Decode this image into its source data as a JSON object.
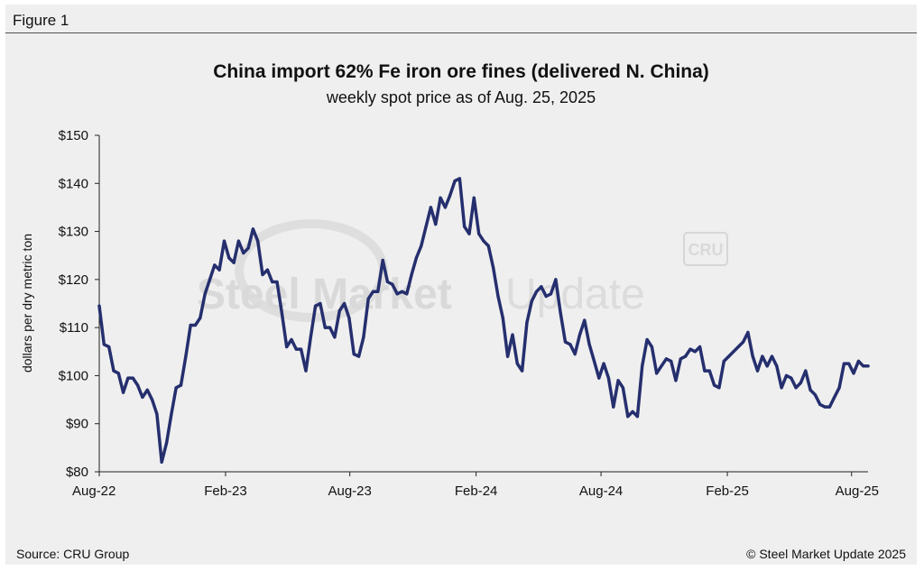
{
  "figure_label": "Figure 1",
  "source": "Source: CRU Group",
  "copyright": "© Steel Market Update 2025",
  "watermark": {
    "brand": "Steel Market",
    "brand2": "Update",
    "badge": "CRU"
  },
  "colors": {
    "line": "#252f6e",
    "background": "#efefef",
    "watermark": "#d9d9d9"
  },
  "chart_data": {
    "type": "line",
    "title": "China import 62% Fe iron ore fines (delivered N. China)",
    "subtitle": "weekly spot price as of Aug. 25, 2025",
    "ylabel": "dollars per dry metric ton",
    "xlabel": "",
    "ylim": [
      80,
      150
    ],
    "yticks": [
      80,
      90,
      100,
      110,
      120,
      130,
      140,
      150
    ],
    "ytick_labels": [
      "$80",
      "$90",
      "$100",
      "$110",
      "$120",
      "$130",
      "$140",
      "$150"
    ],
    "xlim": [
      "2022-08-01",
      "2025-08-25"
    ],
    "xticks": [
      "2022-08-01",
      "2023-02-01",
      "2023-08-01",
      "2024-02-01",
      "2024-08-01",
      "2025-02-01",
      "2025-08-01"
    ],
    "xtick_labels": [
      "Aug-22",
      "Feb-23",
      "Aug-23",
      "Feb-24",
      "Aug-24",
      "Feb-25",
      "Aug-25"
    ],
    "grid": false,
    "legend": "none",
    "series": [
      {
        "x": [
          "2022-08-01",
          "2022-08-08",
          "2022-08-15",
          "2022-08-22",
          "2022-08-29",
          "2022-09-05",
          "2022-09-12",
          "2022-09-19",
          "2022-09-26",
          "2022-10-03",
          "2022-10-10",
          "2022-10-17",
          "2022-10-24",
          "2022-10-31",
          "2022-11-07",
          "2022-11-14",
          "2022-11-21",
          "2022-11-28",
          "2022-12-05",
          "2022-12-12",
          "2022-12-19",
          "2022-12-26",
          "2023-01-02",
          "2023-01-09",
          "2023-01-16",
          "2023-01-23",
          "2023-01-30",
          "2023-02-06",
          "2023-02-13",
          "2023-02-20",
          "2023-02-27",
          "2023-03-06",
          "2023-03-13",
          "2023-03-20",
          "2023-03-27",
          "2023-04-03",
          "2023-04-10",
          "2023-04-17",
          "2023-04-24",
          "2023-05-01",
          "2023-05-08",
          "2023-05-15",
          "2023-05-22",
          "2023-05-29",
          "2023-06-05",
          "2023-06-12",
          "2023-06-19",
          "2023-06-26",
          "2023-07-03",
          "2023-07-10",
          "2023-07-17",
          "2023-07-24",
          "2023-07-31",
          "2023-08-07",
          "2023-08-14",
          "2023-08-21",
          "2023-08-28",
          "2023-09-04",
          "2023-09-11",
          "2023-09-18",
          "2023-09-25",
          "2023-10-02",
          "2023-10-09",
          "2023-10-16",
          "2023-10-23",
          "2023-10-30",
          "2023-11-06",
          "2023-11-13",
          "2023-11-20",
          "2023-11-27",
          "2023-12-04",
          "2023-12-11",
          "2023-12-18",
          "2023-12-25",
          "2024-01-01",
          "2024-01-08",
          "2024-01-15",
          "2024-01-22",
          "2024-01-29",
          "2024-02-05",
          "2024-02-12",
          "2024-02-19",
          "2024-02-26",
          "2024-03-04",
          "2024-03-11",
          "2024-03-18",
          "2024-03-25",
          "2024-04-01",
          "2024-04-08",
          "2024-04-15",
          "2024-04-22",
          "2024-04-29",
          "2024-05-06",
          "2024-05-13",
          "2024-05-20",
          "2024-05-27",
          "2024-06-03",
          "2024-06-10",
          "2024-06-17",
          "2024-06-24",
          "2024-07-01",
          "2024-07-08",
          "2024-07-15",
          "2024-07-22",
          "2024-07-29",
          "2024-08-05",
          "2024-08-12",
          "2024-08-19",
          "2024-08-26",
          "2024-09-02",
          "2024-09-09",
          "2024-09-16",
          "2024-09-23",
          "2024-09-30",
          "2024-10-07",
          "2024-10-14",
          "2024-10-21",
          "2024-10-28",
          "2024-11-04",
          "2024-11-11",
          "2024-11-18",
          "2024-11-25",
          "2024-12-02",
          "2024-12-09",
          "2024-12-16",
          "2024-12-23",
          "2024-12-30",
          "2025-01-06",
          "2025-01-13",
          "2025-01-20",
          "2025-01-27",
          "2025-02-03",
          "2025-02-10",
          "2025-02-17",
          "2025-02-24",
          "2025-03-03",
          "2025-03-10",
          "2025-03-17",
          "2025-03-24",
          "2025-03-31",
          "2025-04-07",
          "2025-04-14",
          "2025-04-21",
          "2025-04-28",
          "2025-05-05",
          "2025-05-12",
          "2025-05-19",
          "2025-05-26",
          "2025-06-02",
          "2025-06-09",
          "2025-06-16",
          "2025-06-23",
          "2025-06-30",
          "2025-07-07",
          "2025-07-14",
          "2025-07-21",
          "2025-07-28",
          "2025-08-04",
          "2025-08-11",
          "2025-08-18",
          "2025-08-25"
        ],
        "values": [
          114.5,
          106.5,
          106.0,
          101.0,
          100.5,
          96.5,
          99.5,
          99.5,
          98.0,
          95.5,
          97.0,
          95.0,
          92.0,
          82.0,
          86.0,
          92.0,
          97.5,
          98.0,
          104.0,
          110.5,
          110.5,
          112.0,
          117.0,
          120.0,
          123.0,
          122.0,
          128.0,
          124.5,
          123.5,
          128.0,
          125.5,
          126.5,
          130.5,
          128.0,
          121.0,
          122.0,
          119.5,
          119.5,
          113.0,
          106.0,
          107.5,
          105.5,
          105.5,
          101.0,
          108.0,
          114.5,
          115.0,
          110.0,
          110.0,
          108.0,
          113.5,
          115.0,
          112.0,
          104.5,
          104.0,
          108.0,
          116.0,
          117.5,
          117.5,
          124.0,
          119.5,
          119.0,
          117.0,
          117.5,
          117.0,
          121.0,
          124.5,
          127.0,
          131.0,
          135.0,
          131.5,
          137.0,
          135.0,
          137.5,
          140.5,
          141.0,
          131.0,
          129.5,
          137.0,
          129.5,
          128.0,
          127.0,
          122.5,
          116.5,
          112.0,
          104.0,
          108.5,
          102.5,
          101.0,
          111.0,
          115.5,
          117.5,
          118.5,
          116.5,
          117.0,
          120.0,
          113.0,
          107.0,
          106.5,
          104.5,
          108.5,
          111.5,
          106.5,
          103.0,
          99.5,
          102.5,
          99.5,
          93.5,
          99.0,
          97.5,
          91.5,
          92.5,
          91.5,
          102.0,
          107.5,
          106.0,
          100.5,
          102.0,
          103.5,
          103.0,
          99.0,
          103.5,
          104.0,
          105.5,
          105.0,
          106.0,
          101.0,
          101.0,
          98.0,
          97.5,
          103.0,
          104.0,
          105.0,
          106.0,
          107.0,
          109.0,
          104.0,
          101.0,
          104.0,
          102.0,
          104.0,
          102.0,
          97.5,
          100.0,
          99.5,
          97.5,
          98.5,
          101.0,
          97.0,
          96.0,
          94.0,
          93.5,
          93.5,
          95.5,
          97.5,
          102.5,
          102.5,
          100.5,
          103.0,
          102.0,
          102.0
        ]
      }
    ]
  }
}
